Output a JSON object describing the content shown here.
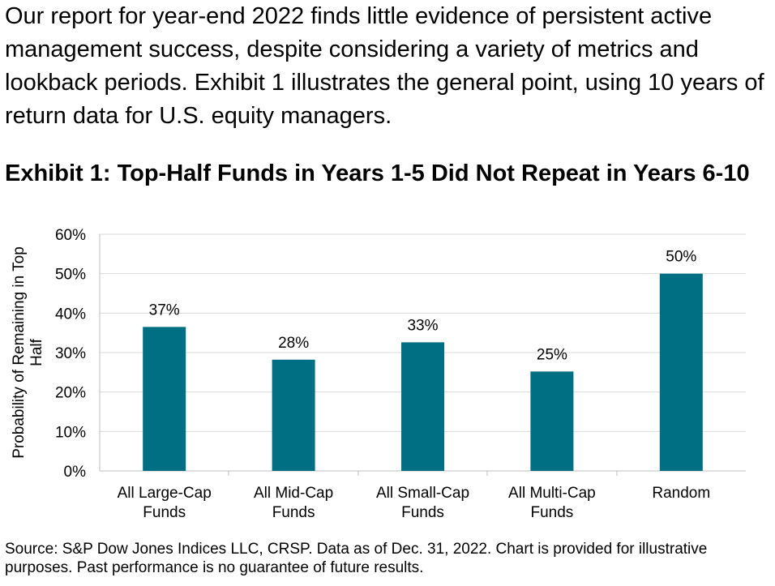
{
  "intro_text": "Our report for year-end 2022 finds little evidence of persistent active management success, despite considering a variety of metrics and lookback periods.  Exhibit 1 illustrates the general point, using 10 years of return data for U.S. equity managers.",
  "colors": {
    "bar": "#006F83",
    "grid": "#D9D9D9",
    "axis": "#BFBFBF"
  },
  "chart_data": {
    "type": "bar",
    "title": "Exhibit 1: Top-Half Funds in Years 1-5 Did Not Repeat in Years 6-10",
    "categories": [
      [
        "All Large-Cap",
        "Funds"
      ],
      [
        "All Mid-Cap",
        "Funds"
      ],
      [
        "All Small-Cap",
        "Funds"
      ],
      [
        "All Multi-Cap",
        "Funds"
      ],
      [
        "Random"
      ]
    ],
    "values": [
      0.365,
      0.282,
      0.326,
      0.252,
      0.5
    ],
    "data_labels": [
      "37%",
      "28%",
      "33%",
      "25%",
      "50%"
    ],
    "ylabel": [
      "Probability of Remaining in Top",
      "Half"
    ],
    "ylim": [
      0,
      0.6
    ],
    "yticks": [
      0,
      0.1,
      0.2,
      0.3,
      0.4,
      0.5,
      0.6
    ],
    "ytick_labels": [
      "0%",
      "10%",
      "20%",
      "30%",
      "40%",
      "50%",
      "60%"
    ],
    "grid": true,
    "legend": "none"
  },
  "footnote": "Source: S&P Dow Jones Indices LLC, CRSP.  Data as of Dec. 31, 2022.  Chart is provided for illustrative purposes.  Past performance is no guarantee of future results."
}
